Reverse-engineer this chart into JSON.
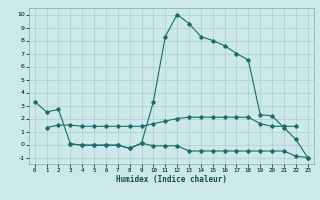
{
  "xlabel": "Humidex (Indice chaleur)",
  "curve_top_x": [
    0,
    1,
    2,
    3,
    4,
    5,
    6,
    7,
    8,
    9,
    10,
    11,
    12,
    13,
    14,
    15,
    16,
    17,
    18,
    19,
    20,
    21,
    22,
    23
  ],
  "curve_top_y": [
    3.3,
    2.5,
    2.7,
    0.05,
    -0.05,
    -0.05,
    -0.05,
    -0.05,
    -0.3,
    0.1,
    3.3,
    8.3,
    10.0,
    9.3,
    8.3,
    8.0,
    7.6,
    7.0,
    6.5,
    2.3,
    2.2,
    1.3,
    0.4,
    -1.0
  ],
  "curve_mid_x": [
    1,
    2,
    3,
    4,
    5,
    6,
    7,
    8,
    9,
    10,
    11,
    12,
    13,
    14,
    15,
    16,
    17,
    18,
    19,
    20,
    21,
    22
  ],
  "curve_mid_y": [
    1.3,
    1.5,
    1.5,
    1.4,
    1.4,
    1.4,
    1.4,
    1.4,
    1.4,
    1.6,
    1.8,
    2.0,
    2.1,
    2.1,
    2.1,
    2.1,
    2.1,
    2.1,
    1.6,
    1.4,
    1.4,
    1.4
  ],
  "curve_bot_x": [
    3,
    4,
    5,
    6,
    7,
    8,
    9,
    10,
    11,
    12,
    13,
    14,
    15,
    16,
    17,
    18,
    19,
    20,
    21,
    22,
    23
  ],
  "curve_bot_y": [
    0.05,
    -0.05,
    -0.05,
    -0.05,
    -0.05,
    -0.3,
    0.1,
    -0.1,
    -0.1,
    -0.1,
    -0.5,
    -0.5,
    -0.5,
    -0.5,
    -0.5,
    -0.5,
    -0.5,
    -0.5,
    -0.5,
    -0.9,
    -1.0
  ],
  "bg_color": "#cce8e8",
  "line_color": "#1a6b6b",
  "grid_color": "#aacfcf",
  "ylim": [
    -1.5,
    10.5
  ],
  "xlim": [
    -0.5,
    23.5
  ],
  "yticks": [
    -1,
    0,
    1,
    2,
    3,
    4,
    5,
    6,
    7,
    8,
    9,
    10
  ],
  "xticks": [
    0,
    1,
    2,
    3,
    4,
    5,
    6,
    7,
    8,
    9,
    10,
    11,
    12,
    13,
    14,
    15,
    16,
    17,
    18,
    19,
    20,
    21,
    22,
    23
  ]
}
